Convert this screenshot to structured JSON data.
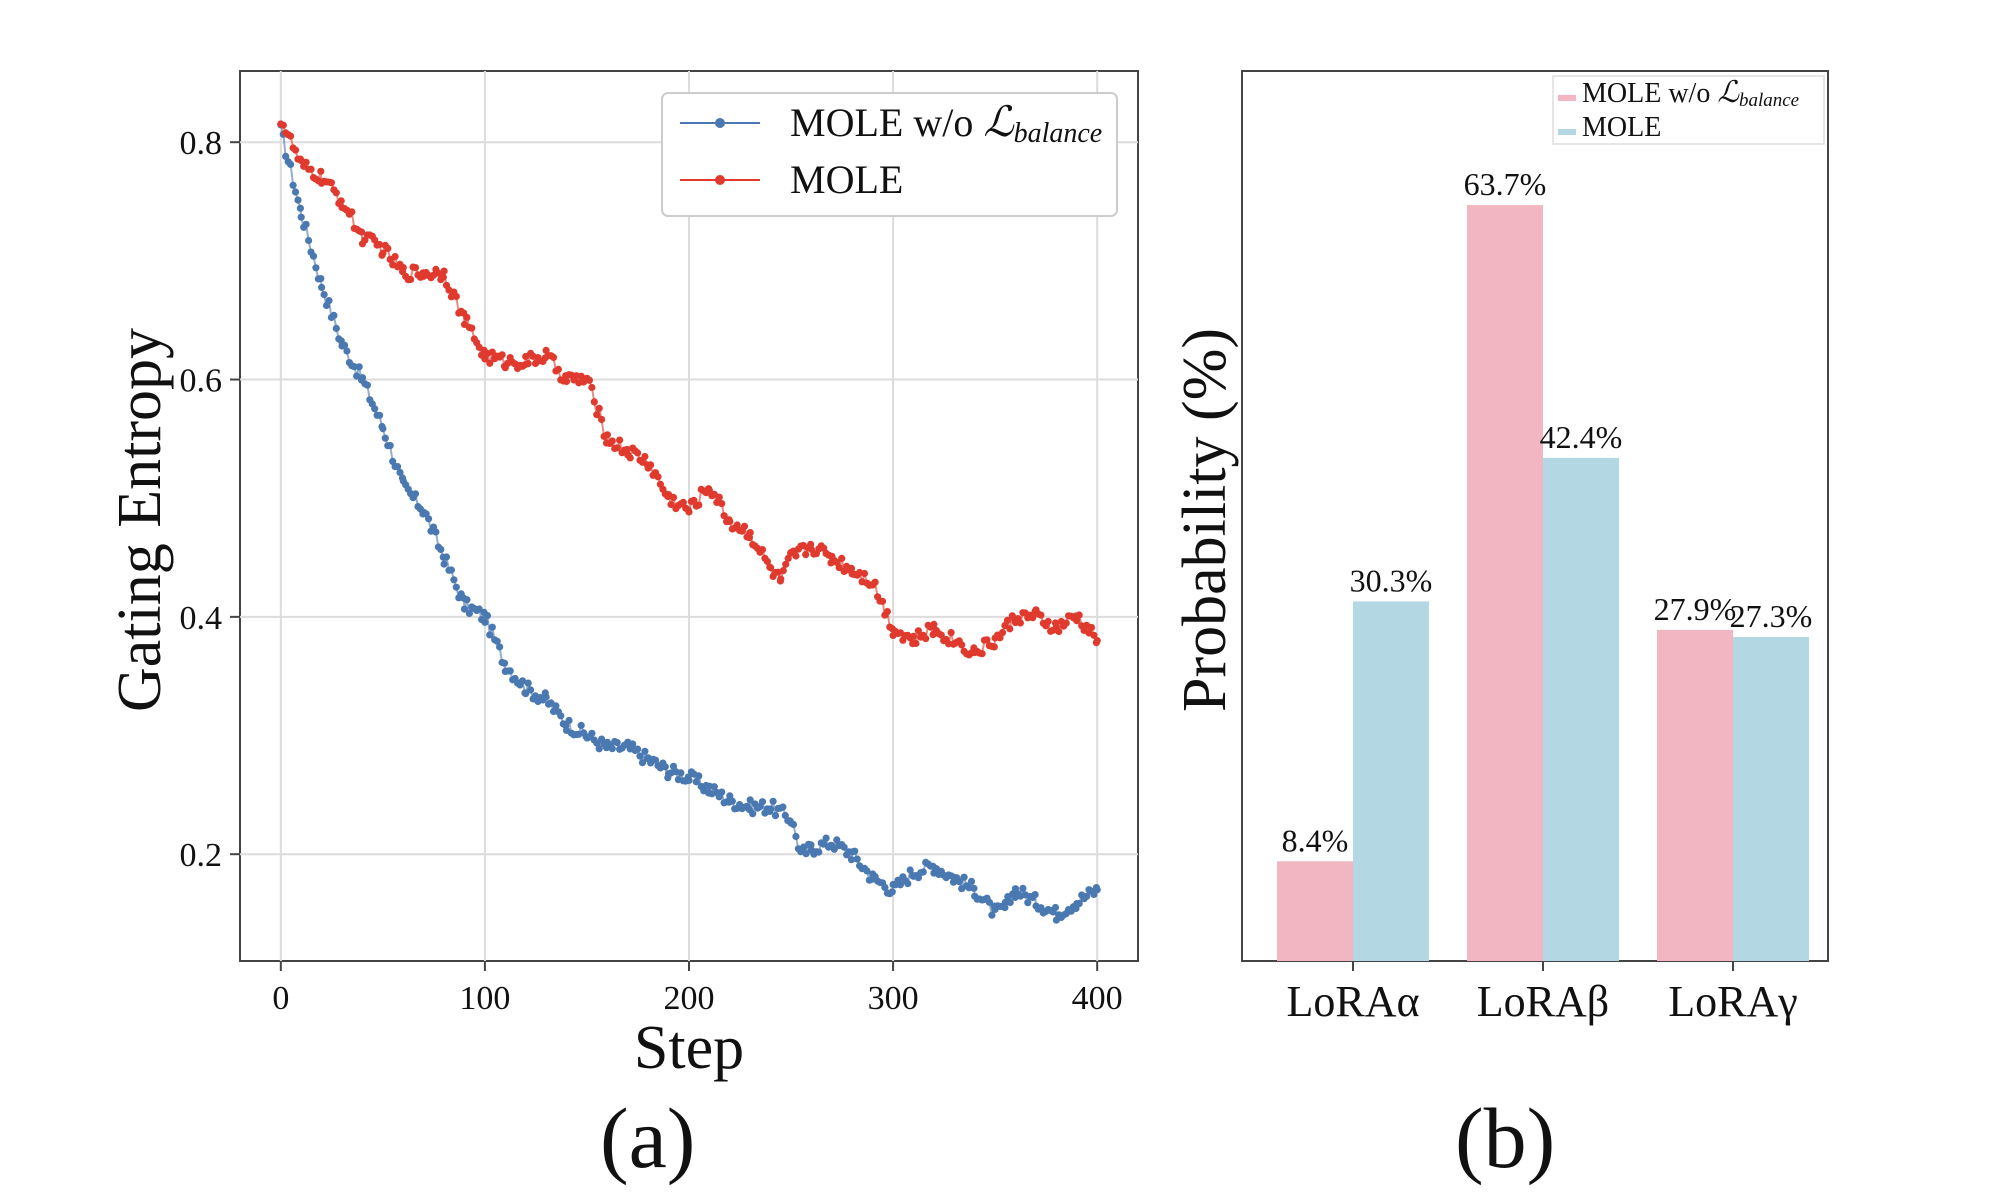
{
  "chart_data": [
    {
      "panel": "(a)",
      "type": "scatter",
      "title": "",
      "xlabel": "Step",
      "ylabel": "Gating Entropy",
      "xlim": [
        -20,
        420
      ],
      "ylim": [
        0.11,
        0.86
      ],
      "xticks": [
        0,
        100,
        200,
        300,
        400
      ],
      "yticks": [
        0.2,
        0.4,
        0.6,
        0.8
      ],
      "xtick_labels": [
        "0",
        "100",
        "200",
        "300",
        "400"
      ],
      "ytick_labels": [
        "0.2",
        "0.4",
        "0.6",
        "0.8"
      ],
      "grid": true,
      "legend": "top-right",
      "series": [
        {
          "name": "MOLE w/o ℒbalance",
          "legend_main": "MOLE w/o ",
          "legend_script": "ℒ",
          "legend_sub": "balance",
          "color": "#4a78b0",
          "x": [
            0,
            10,
            20,
            30,
            40,
            50,
            60,
            70,
            80,
            90,
            100,
            110,
            120,
            130,
            140,
            150,
            160,
            170,
            180,
            190,
            200,
            210,
            220,
            230,
            240,
            250,
            255,
            260,
            270,
            280,
            290,
            300,
            310,
            320,
            330,
            340,
            350,
            355,
            360,
            370,
            380,
            390,
            400
          ],
          "y": [
            0.81,
            0.74,
            0.68,
            0.63,
            0.6,
            0.56,
            0.51,
            0.49,
            0.45,
            0.41,
            0.4,
            0.36,
            0.34,
            0.33,
            0.31,
            0.3,
            0.29,
            0.29,
            0.28,
            0.27,
            0.265,
            0.255,
            0.245,
            0.24,
            0.24,
            0.23,
            0.2,
            0.205,
            0.21,
            0.2,
            0.18,
            0.17,
            0.185,
            0.19,
            0.18,
            0.17,
            0.15,
            0.155,
            0.17,
            0.16,
            0.15,
            0.16,
            0.17
          ]
        },
        {
          "name": "MOLE",
          "legend_main": "MOLE",
          "legend_script": "",
          "legend_sub": "",
          "color": "#e03a2e",
          "x": [
            0,
            10,
            20,
            30,
            40,
            50,
            60,
            70,
            80,
            90,
            100,
            110,
            120,
            130,
            140,
            150,
            160,
            170,
            180,
            190,
            200,
            210,
            220,
            230,
            240,
            245,
            250,
            260,
            270,
            280,
            290,
            300,
            310,
            320,
            330,
            340,
            350,
            360,
            370,
            380,
            390,
            400
          ],
          "y": [
            0.82,
            0.78,
            0.77,
            0.75,
            0.72,
            0.71,
            0.69,
            0.69,
            0.69,
            0.65,
            0.62,
            0.615,
            0.615,
            0.62,
            0.6,
            0.6,
            0.55,
            0.54,
            0.53,
            0.5,
            0.49,
            0.51,
            0.48,
            0.47,
            0.44,
            0.43,
            0.45,
            0.46,
            0.45,
            0.44,
            0.43,
            0.39,
            0.38,
            0.39,
            0.38,
            0.37,
            0.38,
            0.4,
            0.4,
            0.39,
            0.4,
            0.38
          ]
        }
      ]
    },
    {
      "panel": "(b)",
      "type": "bar",
      "title": "",
      "xlabel": "",
      "ylabel": "Probability (%)",
      "ylim": [
        0,
        75
      ],
      "grid": false,
      "legend": "top-right",
      "categories": [
        "LoRAα",
        "LoRAβ",
        "LoRAγ"
      ],
      "series": [
        {
          "name": "MOLE w/o ℒbalance",
          "legend_main": "MOLE w/o ",
          "legend_script": "ℒ",
          "legend_sub": "balance",
          "color": "#f2b6c2",
          "values": [
            8.4,
            63.7,
            27.9
          ],
          "labels": [
            "8.4%",
            "63.7%",
            "27.9%"
          ]
        },
        {
          "name": "MOLE",
          "legend_main": "MOLE",
          "legend_script": "",
          "legend_sub": "",
          "color": "#b3d8e4",
          "values": [
            30.3,
            42.4,
            27.3
          ],
          "labels": [
            "30.3%",
            "42.4%",
            "27.3%"
          ]
        }
      ]
    }
  ],
  "captions": {
    "a": "(a)",
    "b": "(b)"
  }
}
